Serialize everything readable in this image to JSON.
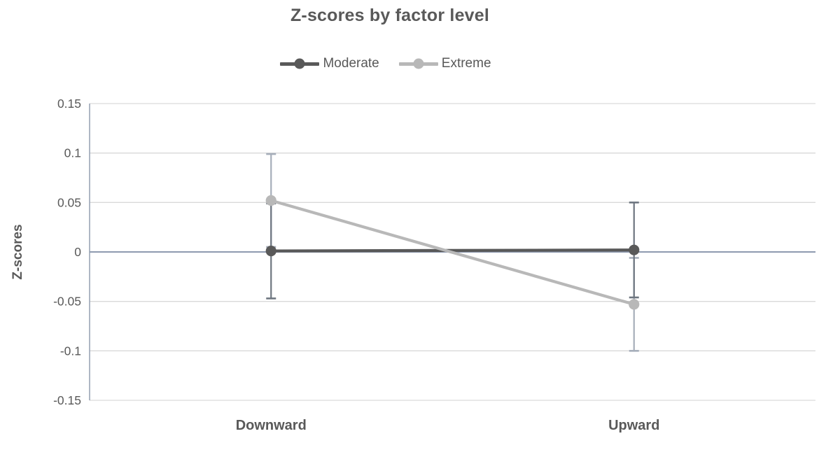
{
  "title": "Z-scores by factor level",
  "colors": {
    "text": "#595959",
    "gridline": "#d9d9d9",
    "axis_line": "#9aa5b6",
    "zero_line": "#8e9ab0"
  },
  "chart_data": {
    "type": "line",
    "title": "Z-scores by factor level",
    "categories": [
      "Downward",
      "Upward"
    ],
    "series": [
      {
        "name": "Moderate",
        "values": [
          0.001,
          0.002
        ],
        "error": 0.048,
        "color": "#595959",
        "error_color": "#6e7680"
      },
      {
        "name": "Extreme",
        "values": [
          0.052,
          -0.053
        ],
        "error": 0.047,
        "color": "#b8b8b8",
        "error_color": "#a6aeba"
      }
    ],
    "xlabel": "",
    "ylabel": "Z-scores",
    "ylim": [
      -0.15,
      0.15
    ],
    "yticks": [
      {
        "value": 0.15,
        "label": "0.15"
      },
      {
        "value": 0.1,
        "label": "0.1"
      },
      {
        "value": 0.05,
        "label": "0.05"
      },
      {
        "value": 0.0,
        "label": "0"
      },
      {
        "value": -0.05,
        "label": "-0.05"
      },
      {
        "value": -0.1,
        "label": "-0.1"
      },
      {
        "value": -0.15,
        "label": "-0.15"
      }
    ],
    "legend_position": "top",
    "grid": true,
    "error_bars": true,
    "marker": "circle"
  }
}
